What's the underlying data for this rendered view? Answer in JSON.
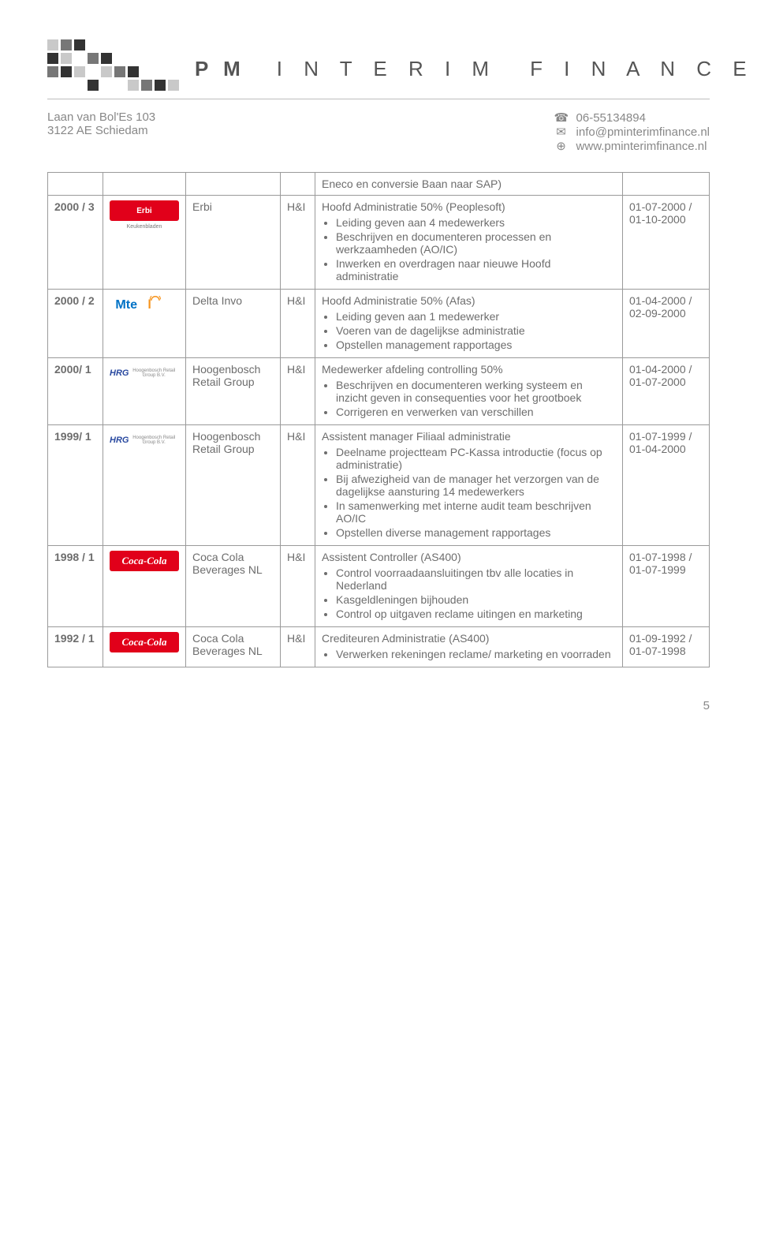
{
  "colors": {
    "text": "#6d6d6d",
    "text_light": "#888888",
    "border": "#9a9a9a",
    "hr": "#bdbdbd",
    "logo_dark": "#333333",
    "logo_mid": "#777777",
    "logo_light": "#c9c9c9",
    "erbi_red": "#e1001a",
    "mtel_blue": "#0072c6",
    "mtel_orange": "#f7941d",
    "hrg_blue": "#2a4aa0"
  },
  "logo": {
    "pm": "P M",
    "interim": "I N T E R I M",
    "finance": "F I N A N C E",
    "square_colors": [
      [
        "#c9c9c9",
        "#777777",
        "#333333",
        "",
        "",
        "",
        "",
        "",
        "",
        ""
      ],
      [
        "#333333",
        "#c9c9c9",
        "",
        "#777777",
        "#333333",
        "",
        "",
        "",
        "",
        ""
      ],
      [
        "#777777",
        "#333333",
        "#c9c9c9",
        "",
        "#c9c9c9",
        "#777777",
        "#333333",
        "",
        "",
        ""
      ],
      [
        "",
        "",
        "",
        "#333333",
        "",
        "",
        "#c9c9c9",
        "#777777",
        "#333333",
        "#c9c9c9"
      ]
    ]
  },
  "letterhead": {
    "address1": "Laan van Bol'Es 103",
    "address2": "3122 AE  Schiedam",
    "phone": "06-55134894",
    "email": "info@pminterimfinance.nl",
    "web": "www.pminterimfinance.nl"
  },
  "carryover": {
    "text": "Eneco en conversie Baan naar SAP)"
  },
  "rows": [
    {
      "period": "2000 / 3",
      "logo": "erbi",
      "logo_text": "Erbi",
      "company": "Erbi",
      "type": "H&I",
      "title": "Hoofd Administratie 50% (Peoplesoft)",
      "bullets": [
        "Leiding geven aan 4 medewerkers",
        "Beschrijven en documenteren processen en werkzaamheden (AO/IC)",
        "Inwerken en overdragen naar nieuwe Hoofd administratie"
      ],
      "date_from": "01-07-2000 /",
      "date_to": "01-10-2000"
    },
    {
      "period": "2000 / 2",
      "logo": "mtel",
      "logo_text": "Mtel",
      "company": "Delta Invo",
      "type": "H&I",
      "title": "Hoofd Administratie 50% (Afas)",
      "bullets": [
        "Leiding geven aan 1 medewerker",
        "Voeren van de dagelijkse administratie",
        "Opstellen management rapportages"
      ],
      "date_from": "01-04-2000 /",
      "date_to": "02-09-2000"
    },
    {
      "period": "2000/ 1",
      "logo": "hrg",
      "logo_text": "HRG",
      "company": "Hoogenbosch Retail Group",
      "type": "H&I",
      "title": "Medewerker afdeling controlling 50%",
      "bullets": [
        "Beschrijven en documenteren werking systeem en inzicht geven in consequenties voor het grootboek",
        "Corrigeren en verwerken van verschillen"
      ],
      "date_from": "01-04-2000 /",
      "date_to": "01-07-2000"
    },
    {
      "period": "1999/ 1",
      "logo": "hrg",
      "logo_text": "HRG",
      "company": "Hoogenbosch Retail Group",
      "type": "H&I",
      "title": "Assistent manager Filiaal administratie",
      "bullets": [
        "Deelname projectteam PC-Kassa introductie (focus op administratie)",
        "Bij afwezigheid van de manager het verzorgen van de dagelijkse aansturing 14 medewerkers",
        "In samenwerking met interne audit team beschrijven AO/IC",
        "Opstellen diverse management rapportages"
      ],
      "date_from": "01-07-1999 /",
      "date_to": "01-04-2000"
    },
    {
      "period": "1998 / 1",
      "logo": "coke",
      "logo_text": "Coca-Cola",
      "company": "Coca Cola Beverages NL",
      "type": "H&I",
      "title": "Assistent Controller (AS400)",
      "bullets": [
        "Control voorraadaansluitingen tbv alle locaties in Nederland",
        "Kasgeldleningen bijhouden",
        "Control op uitgaven reclame uitingen en marketing"
      ],
      "date_from": "01-07-1998 /",
      "date_to": "01-07-1999"
    },
    {
      "period": "1992 / 1",
      "logo": "coke",
      "logo_text": "Coca-Cola",
      "company": "Coca Cola Beverages NL",
      "type": "H&I",
      "title": "Crediteuren Administratie (AS400)",
      "bullets": [
        "Verwerken rekeningen reclame/ marketing en voorraden"
      ],
      "date_from": "01-09-1992 /",
      "date_to": "01-07-1998"
    }
  ],
  "page_number": "5"
}
